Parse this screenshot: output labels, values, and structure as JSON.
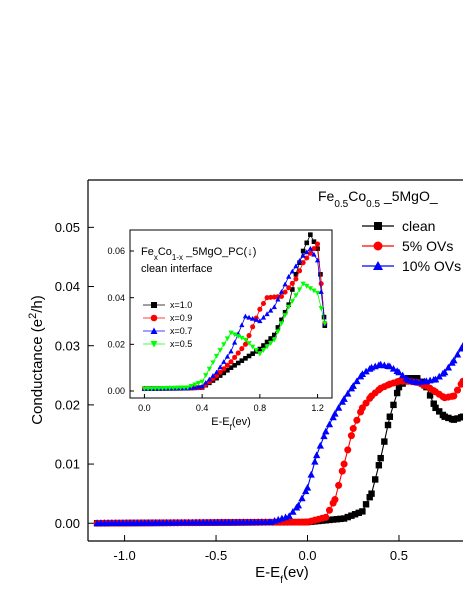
{
  "chart_data": [
    {
      "type": "line",
      "title": "Fe0.5Co0.5_5MgO_",
      "title_parts": {
        "p1": "Fe",
        "s1": "0.5",
        "p2": "Co",
        "s2": "0.5",
        "p3": " _5MgO_"
      },
      "xlabel": "E-E",
      "xlabel_sub": "f",
      "xlabel_unit": "(ev)",
      "ylabel": "Conductance",
      "ylabel_unit_open": "(e",
      "ylabel_unit_sup": "2",
      "ylabel_unit_close": "/h)",
      "xlim": [
        -1.2,
        0.85
      ],
      "ylim": [
        -0.003,
        0.058
      ],
      "xticks": [
        -1.0,
        -0.5,
        0.0,
        0.5
      ],
      "xtick_labels": [
        "-1.0",
        "-0.5",
        "0.0",
        "0.5"
      ],
      "yticks": [
        0.0,
        0.01,
        0.02,
        0.03,
        0.04,
        0.05
      ],
      "ytick_labels": [
        "0.00",
        "0.01",
        "0.02",
        "0.03",
        "0.04",
        "0.05"
      ],
      "legend_placement": "top-right",
      "series": [
        {
          "name": "clean",
          "color": "#000000",
          "marker": "square",
          "x": [
            -1.15,
            0.0,
            0.2,
            0.3,
            0.35,
            0.4,
            0.45,
            0.5,
            0.55,
            0.6,
            0.65,
            0.7,
            0.75,
            0.8,
            0.85
          ],
          "y": [
            0.0,
            0.0002,
            0.0008,
            0.002,
            0.005,
            0.011,
            0.018,
            0.023,
            0.0245,
            0.0245,
            0.023,
            0.0195,
            0.018,
            0.0175,
            0.018
          ]
        },
        {
          "name": "5% OVs",
          "color": "#ff0000",
          "marker": "circle",
          "x": [
            -1.15,
            0.0,
            0.1,
            0.15,
            0.2,
            0.25,
            0.3,
            0.35,
            0.4,
            0.45,
            0.5,
            0.55,
            0.6,
            0.65,
            0.7,
            0.75,
            0.8,
            0.85
          ],
          "y": [
            0.0,
            0.0002,
            0.001,
            0.004,
            0.01,
            0.016,
            0.0195,
            0.0215,
            0.0228,
            0.0235,
            0.024,
            0.024,
            0.0238,
            0.0232,
            0.0222,
            0.0212,
            0.0215,
            0.024
          ]
        },
        {
          "name": "10% OVs",
          "color": "#0000ff",
          "marker": "triangle-up",
          "x": [
            -1.15,
            -0.2,
            -0.1,
            -0.05,
            0.0,
            0.05,
            0.1,
            0.15,
            0.2,
            0.25,
            0.3,
            0.35,
            0.4,
            0.45,
            0.5,
            0.55,
            0.6,
            0.65,
            0.7,
            0.75,
            0.8,
            0.85
          ],
          "y": [
            0.0,
            0.0002,
            0.0012,
            0.003,
            0.006,
            0.0115,
            0.0155,
            0.0185,
            0.021,
            0.0232,
            0.0252,
            0.0263,
            0.0268,
            0.0265,
            0.0255,
            0.0242,
            0.0238,
            0.024,
            0.0243,
            0.0255,
            0.0275,
            0.03
          ]
        }
      ]
    },
    {
      "type": "line",
      "title_line1_parts": {
        "p1": "Fe",
        "s1": "x",
        "p2": "Co",
        "s2": "1-x",
        "p3": " _5MgO_PC(↓)"
      },
      "title_line2": "clean interface",
      "xlabel": "E-E",
      "xlabel_sub": "f",
      "xlabel_unit": "(ev)",
      "xlim": [
        -0.1,
        1.3
      ],
      "ylim": [
        -0.003,
        0.069
      ],
      "xticks": [
        0.0,
        0.4,
        0.8,
        1.2
      ],
      "xtick_labels": [
        "0.0",
        "0.4",
        "0.8",
        "1.2"
      ],
      "yticks": [
        0.0,
        0.02,
        0.04,
        0.06
      ],
      "ytick_labels": [
        "0.00",
        "0.02",
        "0.04",
        "0.06"
      ],
      "legend_placement": "left",
      "series": [
        {
          "name": "x=1.0",
          "color": "#000000",
          "marker": "square",
          "x": [
            0.0,
            0.3,
            0.4,
            0.5,
            0.6,
            0.7,
            0.8,
            0.9,
            1.0,
            1.05,
            1.1,
            1.15,
            1.2,
            1.22,
            1.25
          ],
          "y": [
            0.001,
            0.0012,
            0.0015,
            0.0055,
            0.01,
            0.014,
            0.018,
            0.024,
            0.037,
            0.05,
            0.06,
            0.067,
            0.061,
            0.05,
            0.028
          ]
        },
        {
          "name": "x=0.9",
          "color": "#ff0000",
          "marker": "circle",
          "x": [
            0.0,
            0.3,
            0.4,
            0.5,
            0.6,
            0.7,
            0.8,
            0.85,
            0.95,
            1.05,
            1.1,
            1.15,
            1.2,
            1.25
          ],
          "y": [
            0.001,
            0.0012,
            0.0015,
            0.0065,
            0.0125,
            0.02,
            0.035,
            0.04,
            0.0405,
            0.048,
            0.055,
            0.059,
            0.063,
            0.029
          ]
        },
        {
          "name": "x=0.7",
          "color": "#0000ff",
          "marker": "triangle-up",
          "x": [
            0.0,
            0.3,
            0.4,
            0.5,
            0.6,
            0.7,
            0.8,
            0.9,
            1.0,
            1.1,
            1.15,
            1.2,
            1.25
          ],
          "y": [
            0.001,
            0.0012,
            0.002,
            0.008,
            0.017,
            0.032,
            0.03,
            0.036,
            0.049,
            0.058,
            0.061,
            0.056,
            0.029
          ]
        },
        {
          "name": "x=0.5",
          "color": "#00ff00",
          "marker": "triangle-down",
          "x": [
            0.0,
            0.3,
            0.4,
            0.5,
            0.6,
            0.7,
            0.8,
            0.9,
            1.0,
            1.1,
            1.2,
            1.25
          ],
          "y": [
            0.001,
            0.0015,
            0.004,
            0.015,
            0.025,
            0.022,
            0.016,
            0.022,
            0.036,
            0.046,
            0.042,
            0.029
          ]
        }
      ]
    }
  ]
}
